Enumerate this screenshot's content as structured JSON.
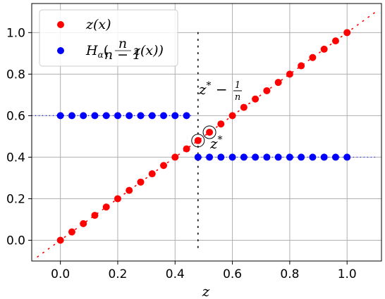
{
  "chart_data": {
    "type": "scatter",
    "xlabel": "z",
    "ylabel": "",
    "xlim": [
      -0.1,
      1.12
    ],
    "ylim": [
      -0.1,
      1.14
    ],
    "grid": true,
    "legend_position": "top-left",
    "xticks": [
      "0.0",
      "0.2",
      "0.4",
      "0.6",
      "0.8",
      "1.0"
    ],
    "yticks": [
      "0.0",
      "0.2",
      "0.4",
      "0.6",
      "0.8",
      "1.0"
    ],
    "colors": {
      "red": "#ff0000",
      "blue": "#0000ff",
      "grid": "#b0b0b0"
    },
    "legend": [
      {
        "label": "z(x)",
        "color": "#ff0000"
      },
      {
        "label": "Hα( n/(n−1) z(x))",
        "color": "#0000ff"
      }
    ],
    "series": [
      {
        "name": "z(x)",
        "color": "#ff0000",
        "x": [
          0.0,
          0.04,
          0.08,
          0.12,
          0.16,
          0.2,
          0.24,
          0.28,
          0.32,
          0.36,
          0.4,
          0.44,
          0.48,
          0.52,
          0.56,
          0.6,
          0.64,
          0.68,
          0.72,
          0.76,
          0.8,
          0.84,
          0.88,
          0.92,
          0.96,
          1.0
        ],
        "y": [
          0.0,
          0.04,
          0.08,
          0.12,
          0.16,
          0.2,
          0.24,
          0.28,
          0.32,
          0.36,
          0.4,
          0.44,
          0.48,
          0.52,
          0.56,
          0.6,
          0.64,
          0.68,
          0.72,
          0.76,
          0.8,
          0.84,
          0.88,
          0.92,
          0.96,
          1.0
        ]
      },
      {
        "name": "Hα( n/(n−1) z(x))",
        "color": "#0000ff",
        "x": [
          0.0,
          0.04,
          0.08,
          0.12,
          0.16,
          0.2,
          0.24,
          0.28,
          0.32,
          0.36,
          0.4,
          0.44,
          0.48,
          0.52,
          0.56,
          0.6,
          0.64,
          0.68,
          0.72,
          0.76,
          0.8,
          0.84,
          0.88,
          0.92,
          0.96,
          1.0
        ],
        "y": [
          0.6,
          0.6,
          0.6,
          0.6,
          0.6,
          0.6,
          0.6,
          0.6,
          0.6,
          0.6,
          0.6,
          0.6,
          0.4,
          0.4,
          0.4,
          0.4,
          0.4,
          0.4,
          0.4,
          0.4,
          0.4,
          0.4,
          0.4,
          0.4,
          0.4,
          0.4
        ]
      }
    ],
    "reference_lines": {
      "diagonal": {
        "from": [
          -0.08,
          -0.08
        ],
        "to": [
          1.1,
          1.1
        ],
        "color": "#ff0000"
      },
      "blue_left": {
        "y": 0.6,
        "from_x": -0.1,
        "to_x": 0.46,
        "color": "#0000ff"
      },
      "blue_right": {
        "y": 0.4,
        "from_x": 0.48,
        "to_x": 1.1,
        "color": "#0000ff"
      },
      "vertical": {
        "x": 0.48,
        "from_y": -0.05,
        "to_y": 1.0,
        "color": "#000000"
      }
    },
    "annotations": [
      {
        "name": "z-star",
        "x": 0.52,
        "y": 0.52,
        "text": "z*"
      },
      {
        "name": "z-star-minus-inv-n",
        "x": 0.48,
        "y": 0.48,
        "text": "z* − 1/n"
      }
    ]
  }
}
